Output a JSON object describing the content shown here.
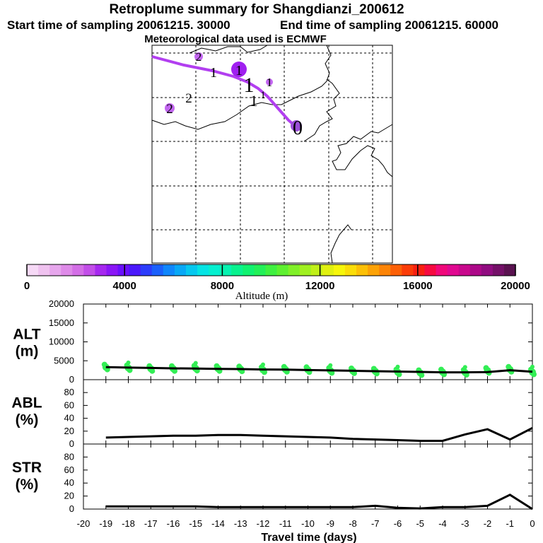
{
  "header": {
    "title": "Retroplume summary for Shangdianzi_200612",
    "start_label": "Start time of sampling 20061215. 30000",
    "end_label": "End time of sampling 20061215. 60000",
    "met_label": "Meteorological data used is ECMWF"
  },
  "colorbar": {
    "title": "Altitude (m)",
    "tick_labels": [
      "0",
      "4000",
      "8000",
      "12000",
      "16000",
      "20000"
    ],
    "range": [
      0,
      20000
    ],
    "colors": [
      "#f6d9f6",
      "#efc2ef",
      "#e6a6ec",
      "#de8ae8",
      "#d36ee6",
      "#c24ee8",
      "#a628ef",
      "#8a16f6",
      "#6a10fc",
      "#4a18fb",
      "#2c3cfb",
      "#1a60fb",
      "#0f86fb",
      "#08a8f6",
      "#06c8ef",
      "#05e4e4",
      "#05f0d0",
      "#06f2b0",
      "#08f28e",
      "#10f270",
      "#22f058",
      "#3ff040",
      "#5ef030",
      "#80f028",
      "#a0f020",
      "#c0f018",
      "#e0f010",
      "#f6f60a",
      "#fadd08",
      "#fcc006",
      "#fca206",
      "#fc8406",
      "#fc6006",
      "#fb3c08",
      "#f82010",
      "#f60a40",
      "#f0087a",
      "#e00890",
      "#c8088c",
      "#ac0888",
      "#900c80",
      "#741068",
      "#5a1250"
    ]
  },
  "map": {
    "station_name": "Shangdianzi",
    "trajectory_color": "#b23ff0",
    "markers": [
      {
        "label": "1",
        "filled": true,
        "size": "large"
      },
      {
        "label": "1",
        "filled": false
      },
      {
        "label": "2",
        "filled": true
      },
      {
        "label": "1",
        "filled": false
      },
      {
        "label": "1",
        "filled": false
      },
      {
        "label": "1",
        "filled": true
      },
      {
        "label": "2",
        "filled": false
      },
      {
        "label": "2",
        "filled": true
      },
      {
        "label": "0",
        "filled": false
      }
    ]
  },
  "chart_data": [
    {
      "type": "scatter",
      "panel_label_1": "ALT",
      "panel_label_2": "(m)",
      "x": [
        -19,
        -18,
        -17,
        -16,
        -15,
        -14,
        -13,
        -12,
        -11,
        -10,
        -9,
        -8,
        -7,
        -6,
        -5,
        -4,
        -3,
        -2,
        -1,
        0
      ],
      "series": [
        {
          "name": "mean altitude line",
          "values": [
            3300,
            3200,
            3100,
            3000,
            2950,
            2850,
            2800,
            2700,
            2650,
            2550,
            2450,
            2350,
            2250,
            2150,
            2050,
            1950,
            1950,
            2000,
            2500,
            2100
          ]
        },
        {
          "name": "plume clusters",
          "values": [
            3300,
            3100,
            2900,
            2900,
            3000,
            2900,
            2800,
            2600,
            2700,
            2600,
            2400,
            2300,
            2200,
            2000,
            1800,
            2000,
            1900,
            2400,
            2700,
            2000
          ]
        }
      ],
      "ylim": [
        0,
        20000
      ],
      "yticks": [
        "0",
        "5000",
        "10000",
        "15000",
        "20000"
      ],
      "point_color": "#33ee55"
    },
    {
      "type": "line",
      "panel_label_1": "ABL",
      "panel_label_2": "(%)",
      "x": [
        -19,
        -18,
        -17,
        -16,
        -15,
        -14,
        -13,
        -12,
        -11,
        -10,
        -9,
        -8,
        -7,
        -6,
        -5,
        -4,
        -3,
        -2,
        -1,
        0
      ],
      "values": [
        10,
        11,
        12,
        13,
        13,
        14,
        14,
        13,
        12,
        11,
        10,
        8,
        7,
        6,
        5,
        5,
        15,
        23,
        7,
        25
      ],
      "ylim": [
        0,
        100
      ],
      "yticks": [
        "0",
        "20",
        "40",
        "60",
        "80"
      ]
    },
    {
      "type": "line",
      "panel_label_1": "STR",
      "panel_label_2": "(%)",
      "x": [
        -19,
        -18,
        -17,
        -16,
        -15,
        -14,
        -13,
        -12,
        -11,
        -10,
        -9,
        -8,
        -7,
        -6,
        -5,
        -4,
        -3,
        -2,
        -1,
        0
      ],
      "values": [
        4,
        4,
        4,
        4,
        4,
        3,
        3,
        3,
        3,
        3,
        3,
        3,
        5,
        2,
        1,
        3,
        3,
        5,
        22,
        0
      ],
      "ylim": [
        0,
        100
      ],
      "yticks": [
        "0",
        "20",
        "40",
        "60",
        "80"
      ],
      "xlabel": "Travel time (days)",
      "xticks": [
        "-20",
        "-19",
        "-18",
        "-17",
        "-16",
        "-15",
        "-14",
        "-13",
        "-12",
        "-11",
        "-10",
        "-9",
        "-8",
        "-7",
        "-6",
        "-5",
        "-4",
        "-3",
        "-2",
        "-1",
        "0"
      ]
    }
  ]
}
